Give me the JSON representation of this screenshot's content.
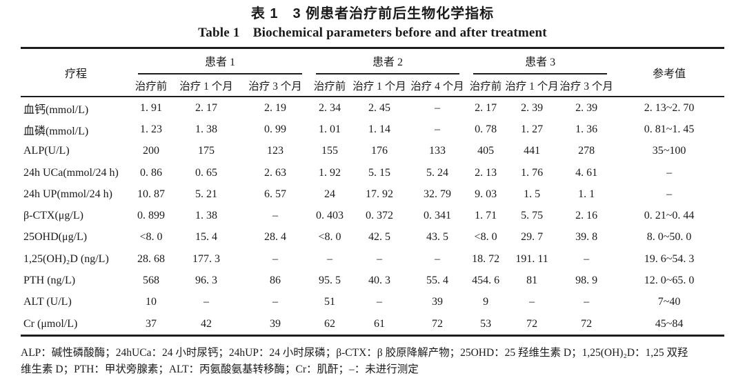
{
  "colors": {
    "text": "#1a1a1a",
    "rule": "#1b1b1b",
    "background": "#ffffff"
  },
  "title": {
    "zh": "表 1　3 例患者治疗前后生物化学指标",
    "en": "Table 1　Biochemical parameters before and after treatment"
  },
  "table": {
    "course_header": "疗程",
    "reference_header": "参考值",
    "groups": [
      {
        "label": "患者 1",
        "columns": [
          "治疗前",
          "治疗 1 个月",
          "治疗 3 个月"
        ]
      },
      {
        "label": "患者 2",
        "columns": [
          "治疗前",
          "治疗 1 个月",
          "治疗 4 个月"
        ]
      },
      {
        "label": "患者 3",
        "columns": [
          "治疗前",
          "治疗 1 个月",
          "治疗 3 个月"
        ]
      }
    ],
    "rows": [
      {
        "label": "血钙(mmol/L)",
        "values": [
          "1. 91",
          "2. 17",
          "2. 19",
          "2. 34",
          "2. 45",
          "–",
          "2. 17",
          "2. 39",
          "2. 39"
        ],
        "reference": "2. 13~2. 70"
      },
      {
        "label": "血磷(mmol/L)",
        "values": [
          "1. 23",
          "1. 38",
          "0. 99",
          "1. 01",
          "1. 14",
          "–",
          "0. 78",
          "1. 27",
          "1. 36"
        ],
        "reference": "0. 81~1. 45"
      },
      {
        "label": "ALP(U/L)",
        "values": [
          "200",
          "175",
          "123",
          "155",
          "176",
          "133",
          "405",
          "441",
          "278"
        ],
        "reference": "35~100"
      },
      {
        "label": "24h UCa(mmol/24 h)",
        "values": [
          "0. 86",
          "0. 65",
          "2. 63",
          "1. 92",
          "5. 15",
          "5. 24",
          "2. 13",
          "1. 76",
          "4. 61"
        ],
        "reference": "–"
      },
      {
        "label": "24h UP(mmol/24 h)",
        "values": [
          "10. 87",
          "5. 21",
          "6. 57",
          "24",
          "17. 92",
          "32. 79",
          "9. 03",
          "1. 5",
          "1. 1"
        ],
        "reference": "–"
      },
      {
        "label": "β-CTX(μg/L)",
        "values": [
          "0. 899",
          "1. 38",
          "–",
          "0. 403",
          "0. 372",
          "0. 341",
          "1. 71",
          "5. 75",
          "2. 16"
        ],
        "reference": "0. 21~0. 44"
      },
      {
        "label": "25OHD(μg/L)",
        "values": [
          "<8. 0",
          "15. 4",
          "28. 4",
          "<8. 0",
          "42. 5",
          "43. 5",
          "<8. 0",
          "29. 7",
          "39. 8"
        ],
        "reference": "8. 0~50. 0"
      },
      {
        "label": "1,25(OH)₂D (ng/L)",
        "values": [
          "28. 68",
          "177. 3",
          "–",
          "–",
          "–",
          "–",
          "18. 72",
          "191. 11",
          "–"
        ],
        "reference": "19. 6~54. 3"
      },
      {
        "label": "PTH (ng/L)",
        "values": [
          "568",
          "96. 3",
          "86",
          "95. 5",
          "40. 3",
          "55. 4",
          "454. 6",
          "81",
          "98. 9"
        ],
        "reference": "12. 0~65. 0"
      },
      {
        "label": "ALT (U/L)",
        "values": [
          "10",
          "–",
          "–",
          "51",
          "–",
          "39",
          "9",
          "–",
          "–"
        ],
        "reference": "7~40"
      },
      {
        "label": "Cr (μmol/L)",
        "values": [
          "37",
          "42",
          "39",
          "62",
          "61",
          "72",
          "53",
          "72",
          "72"
        ],
        "reference": "45~84"
      }
    ]
  },
  "footnote": {
    "lines": [
      "ALP：碱性磷酸酶；24hUCa：24 小时尿钙；24hUP：24 小时尿磷；β-CTX：β 胶原降解产物；25OHD：25 羟维生素 D；1,25(OH)₂D：1,25 双羟",
      "维生素 D；PTH：甲状旁腺素；ALT：丙氨酸氨基转移酶；Cr：肌酐；–：未进行测定"
    ]
  }
}
